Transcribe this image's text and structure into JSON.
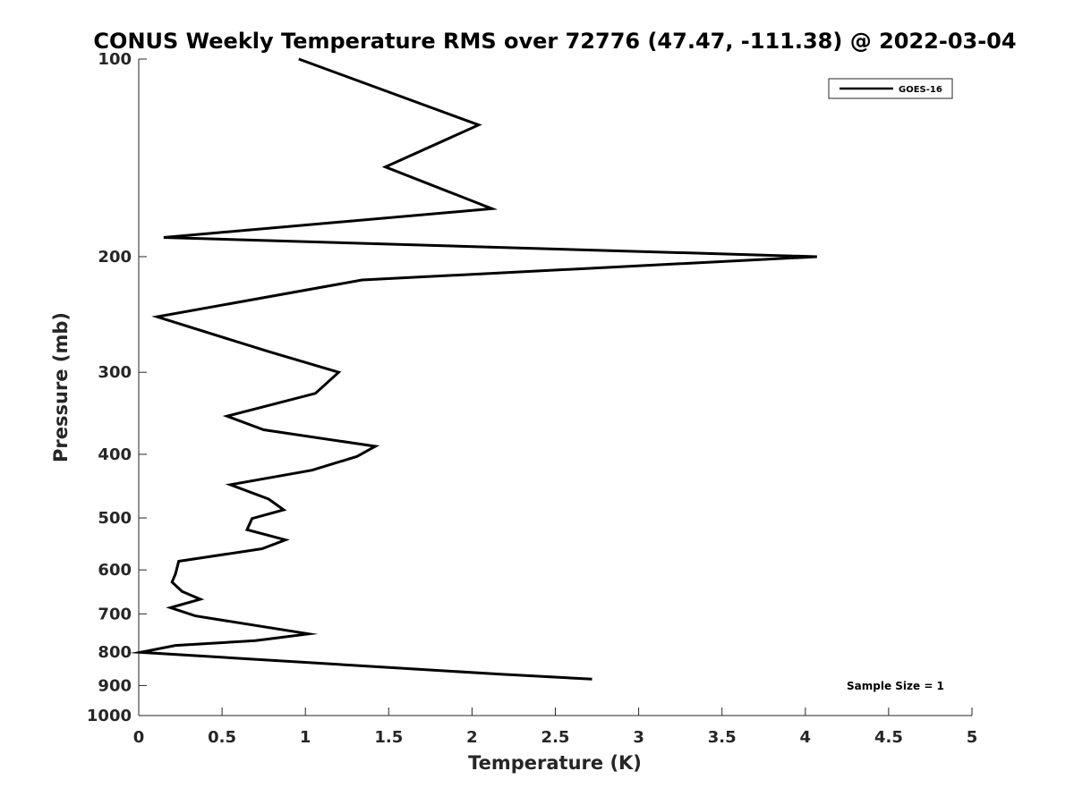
{
  "chart_data": {
    "type": "line",
    "title": "CONUS Weekly Temperature RMS over 72776 (47.47, -111.38) @ 2022-03-04",
    "xlabel": "Temperature (K)",
    "ylabel": "Pressure (mb)",
    "xlim": [
      0,
      5
    ],
    "ylim": [
      100,
      1000
    ],
    "y_scale": "log",
    "y_reversed": true,
    "x_ticks": [
      "0",
      "0.5",
      "1",
      "1.5",
      "2",
      "2.5",
      "3",
      "3.5",
      "4",
      "4.5",
      "5"
    ],
    "y_ticks": [
      "100",
      "200",
      "300",
      "400",
      "500",
      "600",
      "700",
      "800",
      "900",
      "1000"
    ],
    "grid": false,
    "legend_position": "top-right",
    "series": [
      {
        "name": "GOES-16",
        "color": "#000000",
        "points": [
          {
            "x": 0.96,
            "y": 100
          },
          {
            "x": 2.04,
            "y": 126
          },
          {
            "x": 1.48,
            "y": 146
          },
          {
            "x": 2.12,
            "y": 169
          },
          {
            "x": 0.15,
            "y": 187
          },
          {
            "x": 4.07,
            "y": 200
          },
          {
            "x": 1.34,
            "y": 217
          },
          {
            "x": 0.11,
            "y": 247
          },
          {
            "x": 0.78,
            "y": 279
          },
          {
            "x": 1.2,
            "y": 300
          },
          {
            "x": 1.06,
            "y": 323
          },
          {
            "x": 0.53,
            "y": 350
          },
          {
            "x": 0.75,
            "y": 367
          },
          {
            "x": 1.42,
            "y": 389
          },
          {
            "x": 1.31,
            "y": 403
          },
          {
            "x": 1.04,
            "y": 423
          },
          {
            "x": 0.55,
            "y": 445
          },
          {
            "x": 0.78,
            "y": 468
          },
          {
            "x": 0.87,
            "y": 486
          },
          {
            "x": 0.68,
            "y": 501
          },
          {
            "x": 0.65,
            "y": 521
          },
          {
            "x": 0.88,
            "y": 540
          },
          {
            "x": 0.74,
            "y": 557
          },
          {
            "x": 0.24,
            "y": 582
          },
          {
            "x": 0.22,
            "y": 609
          },
          {
            "x": 0.2,
            "y": 626
          },
          {
            "x": 0.26,
            "y": 647
          },
          {
            "x": 0.37,
            "y": 665
          },
          {
            "x": 0.19,
            "y": 685
          },
          {
            "x": 0.34,
            "y": 705
          },
          {
            "x": 1.02,
            "y": 751
          },
          {
            "x": 0.7,
            "y": 769
          },
          {
            "x": 0.22,
            "y": 782
          },
          {
            "x": 0.01,
            "y": 801
          },
          {
            "x": 2.17,
            "y": 865
          },
          {
            "x": 2.72,
            "y": 880
          }
        ]
      }
    ],
    "annotations": [
      "Sample Size = 1"
    ]
  }
}
